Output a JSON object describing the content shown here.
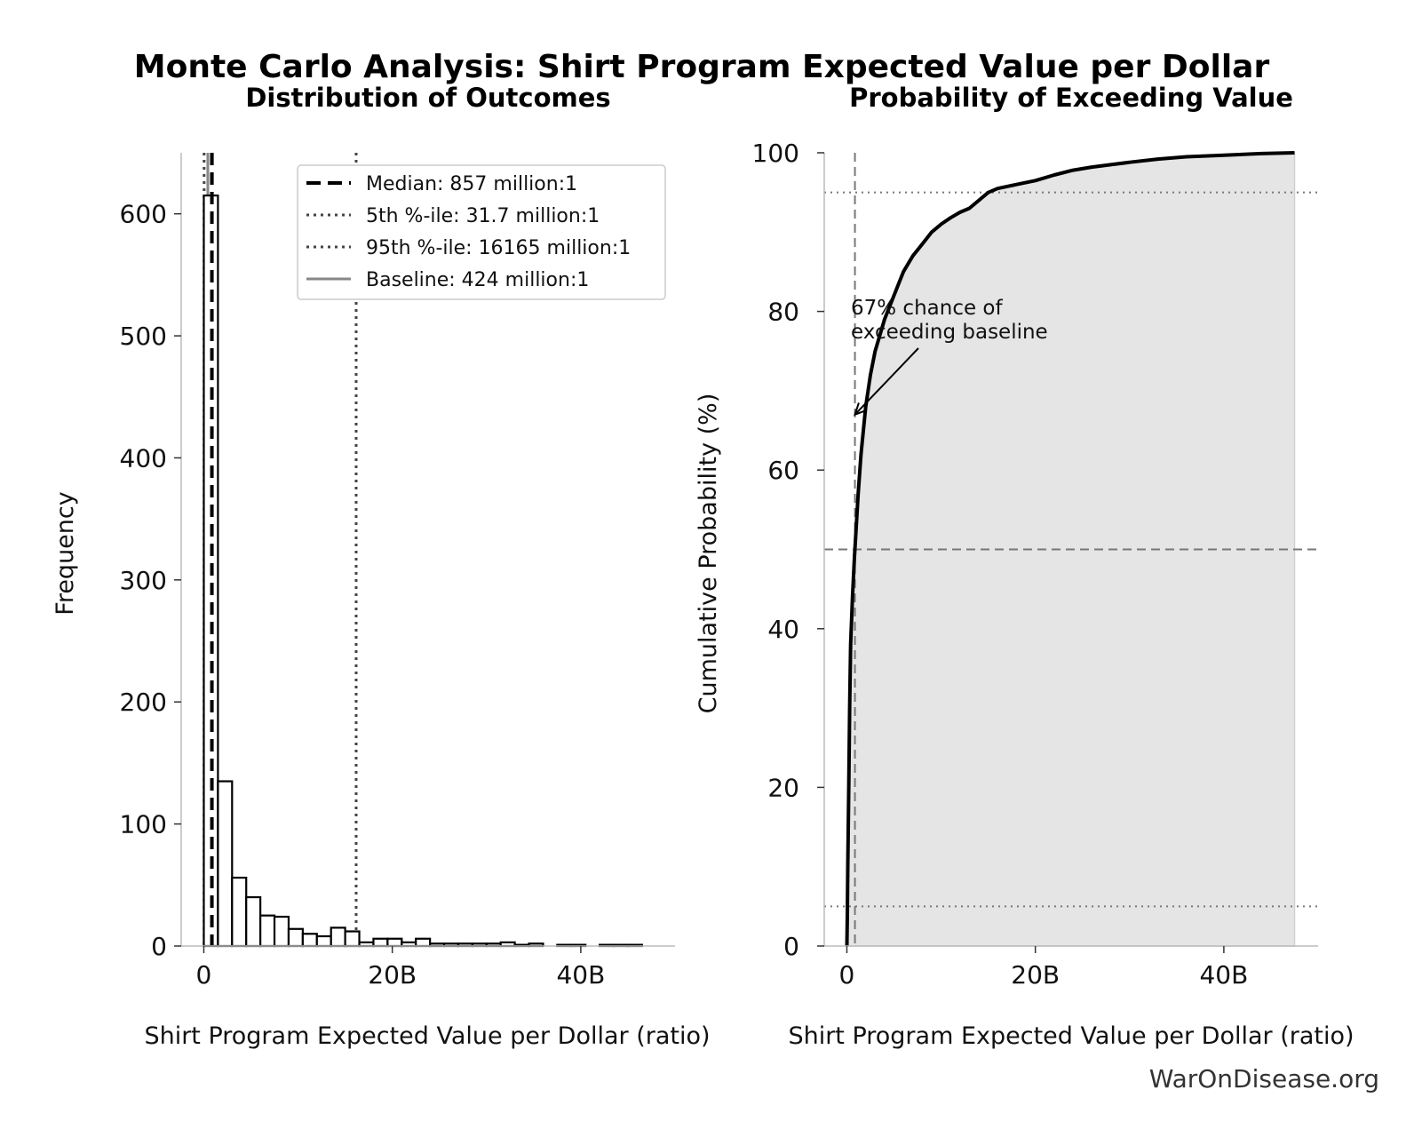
{
  "figure": {
    "title": "Monte Carlo Analysis: Shirt Program Expected Value per Dollar",
    "watermark": "WarOnDisease.org"
  },
  "chart_data": [
    {
      "type": "bar",
      "subtitle": "Distribution of Outcomes",
      "xlabel": "Shirt Program Expected Value per Dollar (ratio)",
      "ylabel": "Frequency",
      "xlim": [
        -2.4,
        50
      ],
      "ylim": [
        0,
        650
      ],
      "xticks": [
        {
          "value": 0,
          "label": "0"
        },
        {
          "value": 20,
          "label": "20B"
        },
        {
          "value": 40,
          "label": "40B"
        }
      ],
      "yticks": [
        0,
        100,
        200,
        300,
        400,
        500,
        600
      ],
      "x_unit": "billions",
      "bin_width": 1.5,
      "bins": [
        {
          "x0": 0.0,
          "count": 615
        },
        {
          "x0": 1.5,
          "count": 135
        },
        {
          "x0": 3.0,
          "count": 56
        },
        {
          "x0": 4.5,
          "count": 40
        },
        {
          "x0": 6.0,
          "count": 25
        },
        {
          "x0": 7.5,
          "count": 24
        },
        {
          "x0": 9.0,
          "count": 14
        },
        {
          "x0": 10.5,
          "count": 10
        },
        {
          "x0": 12.0,
          "count": 8
        },
        {
          "x0": 13.5,
          "count": 15
        },
        {
          "x0": 15.0,
          "count": 12
        },
        {
          "x0": 16.5,
          "count": 3
        },
        {
          "x0": 18.0,
          "count": 6
        },
        {
          "x0": 19.5,
          "count": 6
        },
        {
          "x0": 21.0,
          "count": 3
        },
        {
          "x0": 22.5,
          "count": 6
        },
        {
          "x0": 24.0,
          "count": 2
        },
        {
          "x0": 25.5,
          "count": 2
        },
        {
          "x0": 27.0,
          "count": 2
        },
        {
          "x0": 28.5,
          "count": 2
        },
        {
          "x0": 30.0,
          "count": 2
        },
        {
          "x0": 31.5,
          "count": 3
        },
        {
          "x0": 33.0,
          "count": 1
        },
        {
          "x0": 34.5,
          "count": 2
        },
        {
          "x0": 36.0,
          "count": 0
        },
        {
          "x0": 37.5,
          "count": 1
        },
        {
          "x0": 39.0,
          "count": 1
        },
        {
          "x0": 40.5,
          "count": 0
        },
        {
          "x0": 42.0,
          "count": 1
        },
        {
          "x0": 43.5,
          "count": 1
        },
        {
          "x0": 45.0,
          "count": 1
        }
      ],
      "reference_lines": [
        {
          "name": "Median",
          "x": 0.857,
          "style": "dashed",
          "color": "#000000",
          "legend": "Median: 857 million:1"
        },
        {
          "name": "5th percentile",
          "x": 0.0317,
          "style": "dotted",
          "color": "#444444",
          "legend": "5th %-ile: 31.7 million:1"
        },
        {
          "name": "95th percentile",
          "x": 16.165,
          "style": "dotted",
          "color": "#444444",
          "legend": "95th %-ile: 16165 million:1"
        },
        {
          "name": "Baseline",
          "x": 0.424,
          "style": "solid",
          "color": "#888888",
          "legend": "Baseline: 424 million:1"
        }
      ],
      "legend_position": "top-right"
    },
    {
      "type": "area",
      "subtitle": "Probability of Exceeding Value",
      "xlabel": "Shirt Program Expected Value per Dollar (ratio)",
      "ylabel": "Cumulative Probability (%)",
      "xlim": [
        -2.4,
        50
      ],
      "ylim": [
        0,
        100
      ],
      "xticks": [
        {
          "value": 0,
          "label": "0"
        },
        {
          "value": 20,
          "label": "20B"
        },
        {
          "value": 40,
          "label": "40B"
        }
      ],
      "yticks": [
        0,
        20,
        40,
        60,
        80,
        100
      ],
      "x_unit": "billions",
      "x": [
        0.0,
        0.05,
        0.1,
        0.2,
        0.3,
        0.4,
        0.6,
        0.8,
        1.0,
        1.2,
        1.5,
        2.0,
        2.5,
        3.0,
        4.0,
        5.0,
        6.0,
        7.0,
        8.0,
        9.0,
        10.0,
        11.0,
        12.0,
        13.0,
        14.0,
        15.0,
        16.0,
        18.0,
        20.0,
        22.0,
        24.0,
        26.0,
        28.0,
        30.0,
        33.0,
        36.0,
        40.0,
        44.0,
        47.5
      ],
      "y": [
        0,
        4,
        10,
        20,
        30,
        38,
        44,
        49,
        53,
        57,
        62,
        68,
        72,
        75,
        79,
        82,
        85,
        87,
        88.5,
        90,
        91,
        91.8,
        92.5,
        93,
        94,
        95,
        95.5,
        96,
        96.5,
        97.2,
        97.8,
        98.2,
        98.5,
        98.8,
        99.2,
        99.5,
        99.7,
        99.9,
        100
      ],
      "reference_lines": [
        {
          "orientation": "vertical",
          "x": 0.857,
          "style": "dashed",
          "color": "#777777"
        },
        {
          "orientation": "horizontal",
          "y": 95,
          "style": "dotted",
          "color": "#777777"
        },
        {
          "orientation": "horizontal",
          "y": 50,
          "style": "dashed",
          "color": "#777777"
        },
        {
          "orientation": "horizontal",
          "y": 5,
          "style": "dotted",
          "color": "#777777"
        }
      ],
      "annotation": {
        "text_lines": [
          "67% chance of",
          "exceeding baseline"
        ],
        "point_x": 0.857,
        "point_y": 67
      }
    }
  ]
}
